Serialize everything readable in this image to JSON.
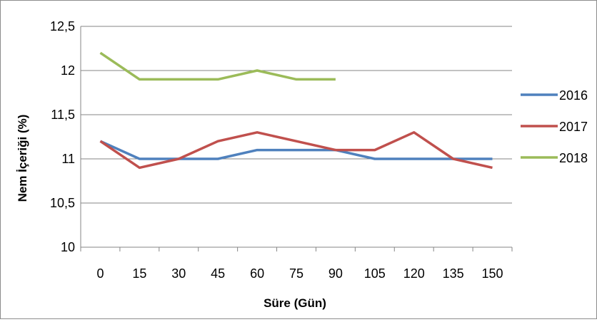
{
  "chart_data": {
    "type": "line",
    "title": "",
    "xlabel": "Süre (Gün)",
    "ylabel": "Nem İçeriği (%)",
    "categories": [
      "0",
      "15",
      "30",
      "45",
      "60",
      "75",
      "90",
      "105",
      "120",
      "135",
      "150"
    ],
    "ylim": [
      10,
      12.5
    ],
    "yticks": [
      10,
      10.5,
      11,
      11.5,
      12,
      12.5
    ],
    "ytick_labels": [
      "10",
      "10,5",
      "11",
      "11,5",
      "12",
      "12,5"
    ],
    "grid": true,
    "legend_position": "right",
    "series": [
      {
        "name": "2016",
        "color": "#4f81bd",
        "values": [
          11.2,
          11.0,
          11.0,
          11.0,
          11.1,
          11.1,
          11.1,
          11.0,
          11.0,
          11.0,
          11.0
        ]
      },
      {
        "name": "2017",
        "color": "#c0504d",
        "values": [
          11.2,
          10.9,
          11.0,
          11.2,
          11.3,
          11.2,
          11.1,
          11.1,
          11.3,
          11.0,
          10.9
        ]
      },
      {
        "name": "2018",
        "color": "#9bbb59",
        "values": [
          12.2,
          11.9,
          11.9,
          11.9,
          12.0,
          11.9,
          11.9,
          null,
          null,
          null,
          null
        ]
      }
    ]
  }
}
